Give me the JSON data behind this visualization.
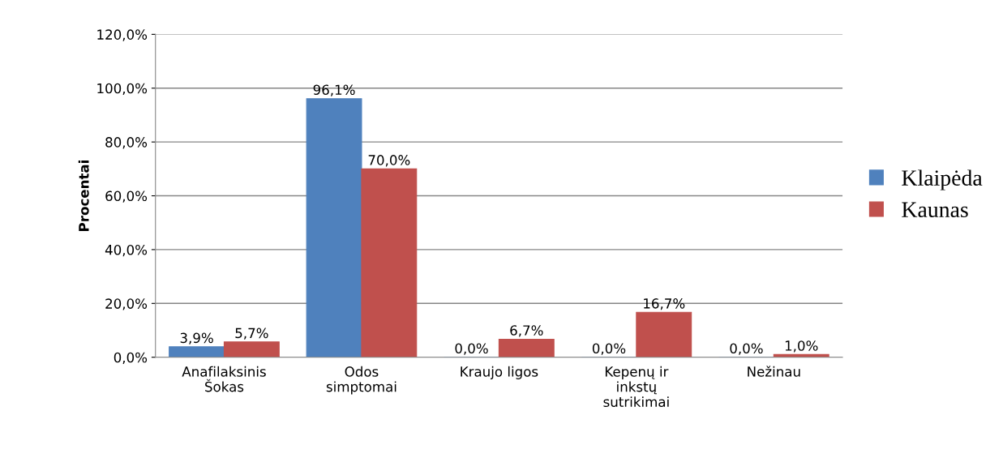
{
  "chart_data": {
    "type": "bar",
    "ylabel": "Procentai",
    "categories": [
      "Anafilaksinis\nŠokas",
      "Odos\nsimptomai",
      "Kraujo ligos",
      "Kepenų ir\ninkstų\nsutrikimai",
      "Nežinau"
    ],
    "series": [
      {
        "name": "Klaipėda",
        "color": "#4f81bd",
        "values": [
          3.9,
          96.1,
          0.0,
          0.0,
          0.0
        ],
        "value_labels": [
          "3,9%",
          "96,1%",
          "0,0%",
          "0,0%",
          "0,0%"
        ]
      },
      {
        "name": "Kaunas",
        "color": "#c0504d",
        "values": [
          5.7,
          70.0,
          6.7,
          16.7,
          1.0
        ],
        "value_labels": [
          "5,7%",
          "70,0%",
          "6,7%",
          "16,7%",
          "1,0%"
        ]
      }
    ],
    "ylim": [
      0,
      120
    ],
    "yticks": [
      {
        "value": 0,
        "label": "0,0%"
      },
      {
        "value": 20,
        "label": "20,0%"
      },
      {
        "value": 40,
        "label": "40,0%"
      },
      {
        "value": 60,
        "label": "60,0%"
      },
      {
        "value": 80,
        "label": "80,0%"
      },
      {
        "value": 100,
        "label": "100,0%"
      },
      {
        "value": 120,
        "label": "120,0%"
      }
    ],
    "grid": "y",
    "legend": "right"
  }
}
